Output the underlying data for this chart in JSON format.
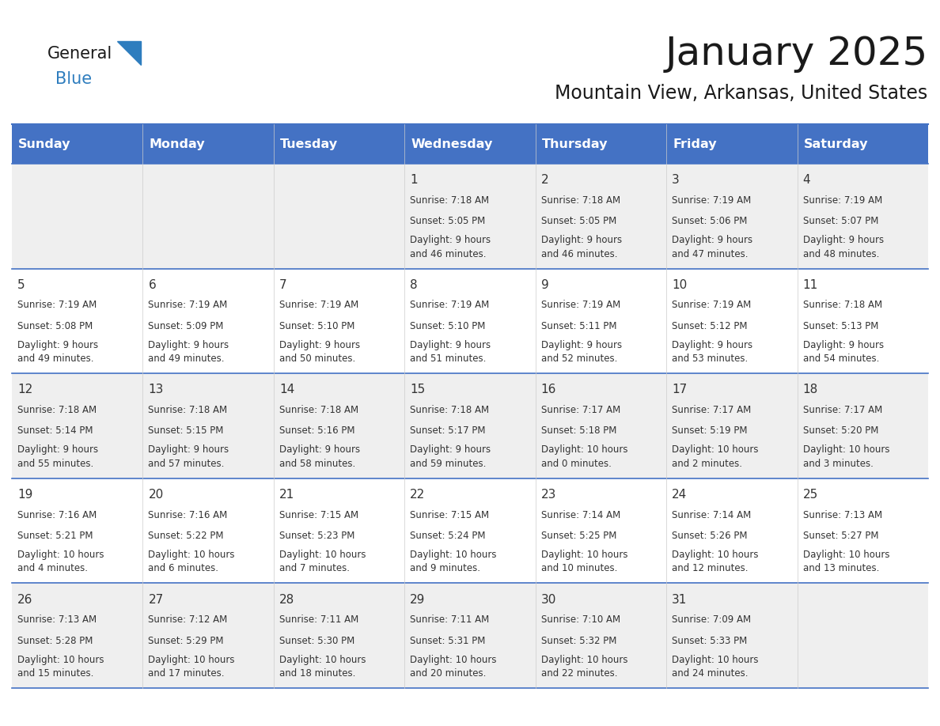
{
  "title": "January 2025",
  "subtitle": "Mountain View, Arkansas, United States",
  "header_bg": "#4472C4",
  "header_text_color": "#FFFFFF",
  "days_of_week": [
    "Sunday",
    "Monday",
    "Tuesday",
    "Wednesday",
    "Thursday",
    "Friday",
    "Saturday"
  ],
  "row_bg_odd": "#EFEFEF",
  "row_bg_even": "#FFFFFF",
  "cell_text_color": "#333333",
  "border_color": "#4472C4",
  "logo_text_color": "#1a1a1a",
  "logo_blue_color": "#2E7DBE",
  "weeks": [
    [
      {
        "day": "",
        "sunrise": "",
        "sunset": "",
        "daylight": ""
      },
      {
        "day": "",
        "sunrise": "",
        "sunset": "",
        "daylight": ""
      },
      {
        "day": "",
        "sunrise": "",
        "sunset": "",
        "daylight": ""
      },
      {
        "day": "1",
        "sunrise": "Sunrise: 7:18 AM",
        "sunset": "Sunset: 5:05 PM",
        "daylight": "Daylight: 9 hours\nand 46 minutes."
      },
      {
        "day": "2",
        "sunrise": "Sunrise: 7:18 AM",
        "sunset": "Sunset: 5:05 PM",
        "daylight": "Daylight: 9 hours\nand 46 minutes."
      },
      {
        "day": "3",
        "sunrise": "Sunrise: 7:19 AM",
        "sunset": "Sunset: 5:06 PM",
        "daylight": "Daylight: 9 hours\nand 47 minutes."
      },
      {
        "day": "4",
        "sunrise": "Sunrise: 7:19 AM",
        "sunset": "Sunset: 5:07 PM",
        "daylight": "Daylight: 9 hours\nand 48 minutes."
      }
    ],
    [
      {
        "day": "5",
        "sunrise": "Sunrise: 7:19 AM",
        "sunset": "Sunset: 5:08 PM",
        "daylight": "Daylight: 9 hours\nand 49 minutes."
      },
      {
        "day": "6",
        "sunrise": "Sunrise: 7:19 AM",
        "sunset": "Sunset: 5:09 PM",
        "daylight": "Daylight: 9 hours\nand 49 minutes."
      },
      {
        "day": "7",
        "sunrise": "Sunrise: 7:19 AM",
        "sunset": "Sunset: 5:10 PM",
        "daylight": "Daylight: 9 hours\nand 50 minutes."
      },
      {
        "day": "8",
        "sunrise": "Sunrise: 7:19 AM",
        "sunset": "Sunset: 5:10 PM",
        "daylight": "Daylight: 9 hours\nand 51 minutes."
      },
      {
        "day": "9",
        "sunrise": "Sunrise: 7:19 AM",
        "sunset": "Sunset: 5:11 PM",
        "daylight": "Daylight: 9 hours\nand 52 minutes."
      },
      {
        "day": "10",
        "sunrise": "Sunrise: 7:19 AM",
        "sunset": "Sunset: 5:12 PM",
        "daylight": "Daylight: 9 hours\nand 53 minutes."
      },
      {
        "day": "11",
        "sunrise": "Sunrise: 7:18 AM",
        "sunset": "Sunset: 5:13 PM",
        "daylight": "Daylight: 9 hours\nand 54 minutes."
      }
    ],
    [
      {
        "day": "12",
        "sunrise": "Sunrise: 7:18 AM",
        "sunset": "Sunset: 5:14 PM",
        "daylight": "Daylight: 9 hours\nand 55 minutes."
      },
      {
        "day": "13",
        "sunrise": "Sunrise: 7:18 AM",
        "sunset": "Sunset: 5:15 PM",
        "daylight": "Daylight: 9 hours\nand 57 minutes."
      },
      {
        "day": "14",
        "sunrise": "Sunrise: 7:18 AM",
        "sunset": "Sunset: 5:16 PM",
        "daylight": "Daylight: 9 hours\nand 58 minutes."
      },
      {
        "day": "15",
        "sunrise": "Sunrise: 7:18 AM",
        "sunset": "Sunset: 5:17 PM",
        "daylight": "Daylight: 9 hours\nand 59 minutes."
      },
      {
        "day": "16",
        "sunrise": "Sunrise: 7:17 AM",
        "sunset": "Sunset: 5:18 PM",
        "daylight": "Daylight: 10 hours\nand 0 minutes."
      },
      {
        "day": "17",
        "sunrise": "Sunrise: 7:17 AM",
        "sunset": "Sunset: 5:19 PM",
        "daylight": "Daylight: 10 hours\nand 2 minutes."
      },
      {
        "day": "18",
        "sunrise": "Sunrise: 7:17 AM",
        "sunset": "Sunset: 5:20 PM",
        "daylight": "Daylight: 10 hours\nand 3 minutes."
      }
    ],
    [
      {
        "day": "19",
        "sunrise": "Sunrise: 7:16 AM",
        "sunset": "Sunset: 5:21 PM",
        "daylight": "Daylight: 10 hours\nand 4 minutes."
      },
      {
        "day": "20",
        "sunrise": "Sunrise: 7:16 AM",
        "sunset": "Sunset: 5:22 PM",
        "daylight": "Daylight: 10 hours\nand 6 minutes."
      },
      {
        "day": "21",
        "sunrise": "Sunrise: 7:15 AM",
        "sunset": "Sunset: 5:23 PM",
        "daylight": "Daylight: 10 hours\nand 7 minutes."
      },
      {
        "day": "22",
        "sunrise": "Sunrise: 7:15 AM",
        "sunset": "Sunset: 5:24 PM",
        "daylight": "Daylight: 10 hours\nand 9 minutes."
      },
      {
        "day": "23",
        "sunrise": "Sunrise: 7:14 AM",
        "sunset": "Sunset: 5:25 PM",
        "daylight": "Daylight: 10 hours\nand 10 minutes."
      },
      {
        "day": "24",
        "sunrise": "Sunrise: 7:14 AM",
        "sunset": "Sunset: 5:26 PM",
        "daylight": "Daylight: 10 hours\nand 12 minutes."
      },
      {
        "day": "25",
        "sunrise": "Sunrise: 7:13 AM",
        "sunset": "Sunset: 5:27 PM",
        "daylight": "Daylight: 10 hours\nand 13 minutes."
      }
    ],
    [
      {
        "day": "26",
        "sunrise": "Sunrise: 7:13 AM",
        "sunset": "Sunset: 5:28 PM",
        "daylight": "Daylight: 10 hours\nand 15 minutes."
      },
      {
        "day": "27",
        "sunrise": "Sunrise: 7:12 AM",
        "sunset": "Sunset: 5:29 PM",
        "daylight": "Daylight: 10 hours\nand 17 minutes."
      },
      {
        "day": "28",
        "sunrise": "Sunrise: 7:11 AM",
        "sunset": "Sunset: 5:30 PM",
        "daylight": "Daylight: 10 hours\nand 18 minutes."
      },
      {
        "day": "29",
        "sunrise": "Sunrise: 7:11 AM",
        "sunset": "Sunset: 5:31 PM",
        "daylight": "Daylight: 10 hours\nand 20 minutes."
      },
      {
        "day": "30",
        "sunrise": "Sunrise: 7:10 AM",
        "sunset": "Sunset: 5:32 PM",
        "daylight": "Daylight: 10 hours\nand 22 minutes."
      },
      {
        "day": "31",
        "sunrise": "Sunrise: 7:09 AM",
        "sunset": "Sunset: 5:33 PM",
        "daylight": "Daylight: 10 hours\nand 24 minutes."
      },
      {
        "day": "",
        "sunrise": "",
        "sunset": "",
        "daylight": ""
      }
    ]
  ]
}
